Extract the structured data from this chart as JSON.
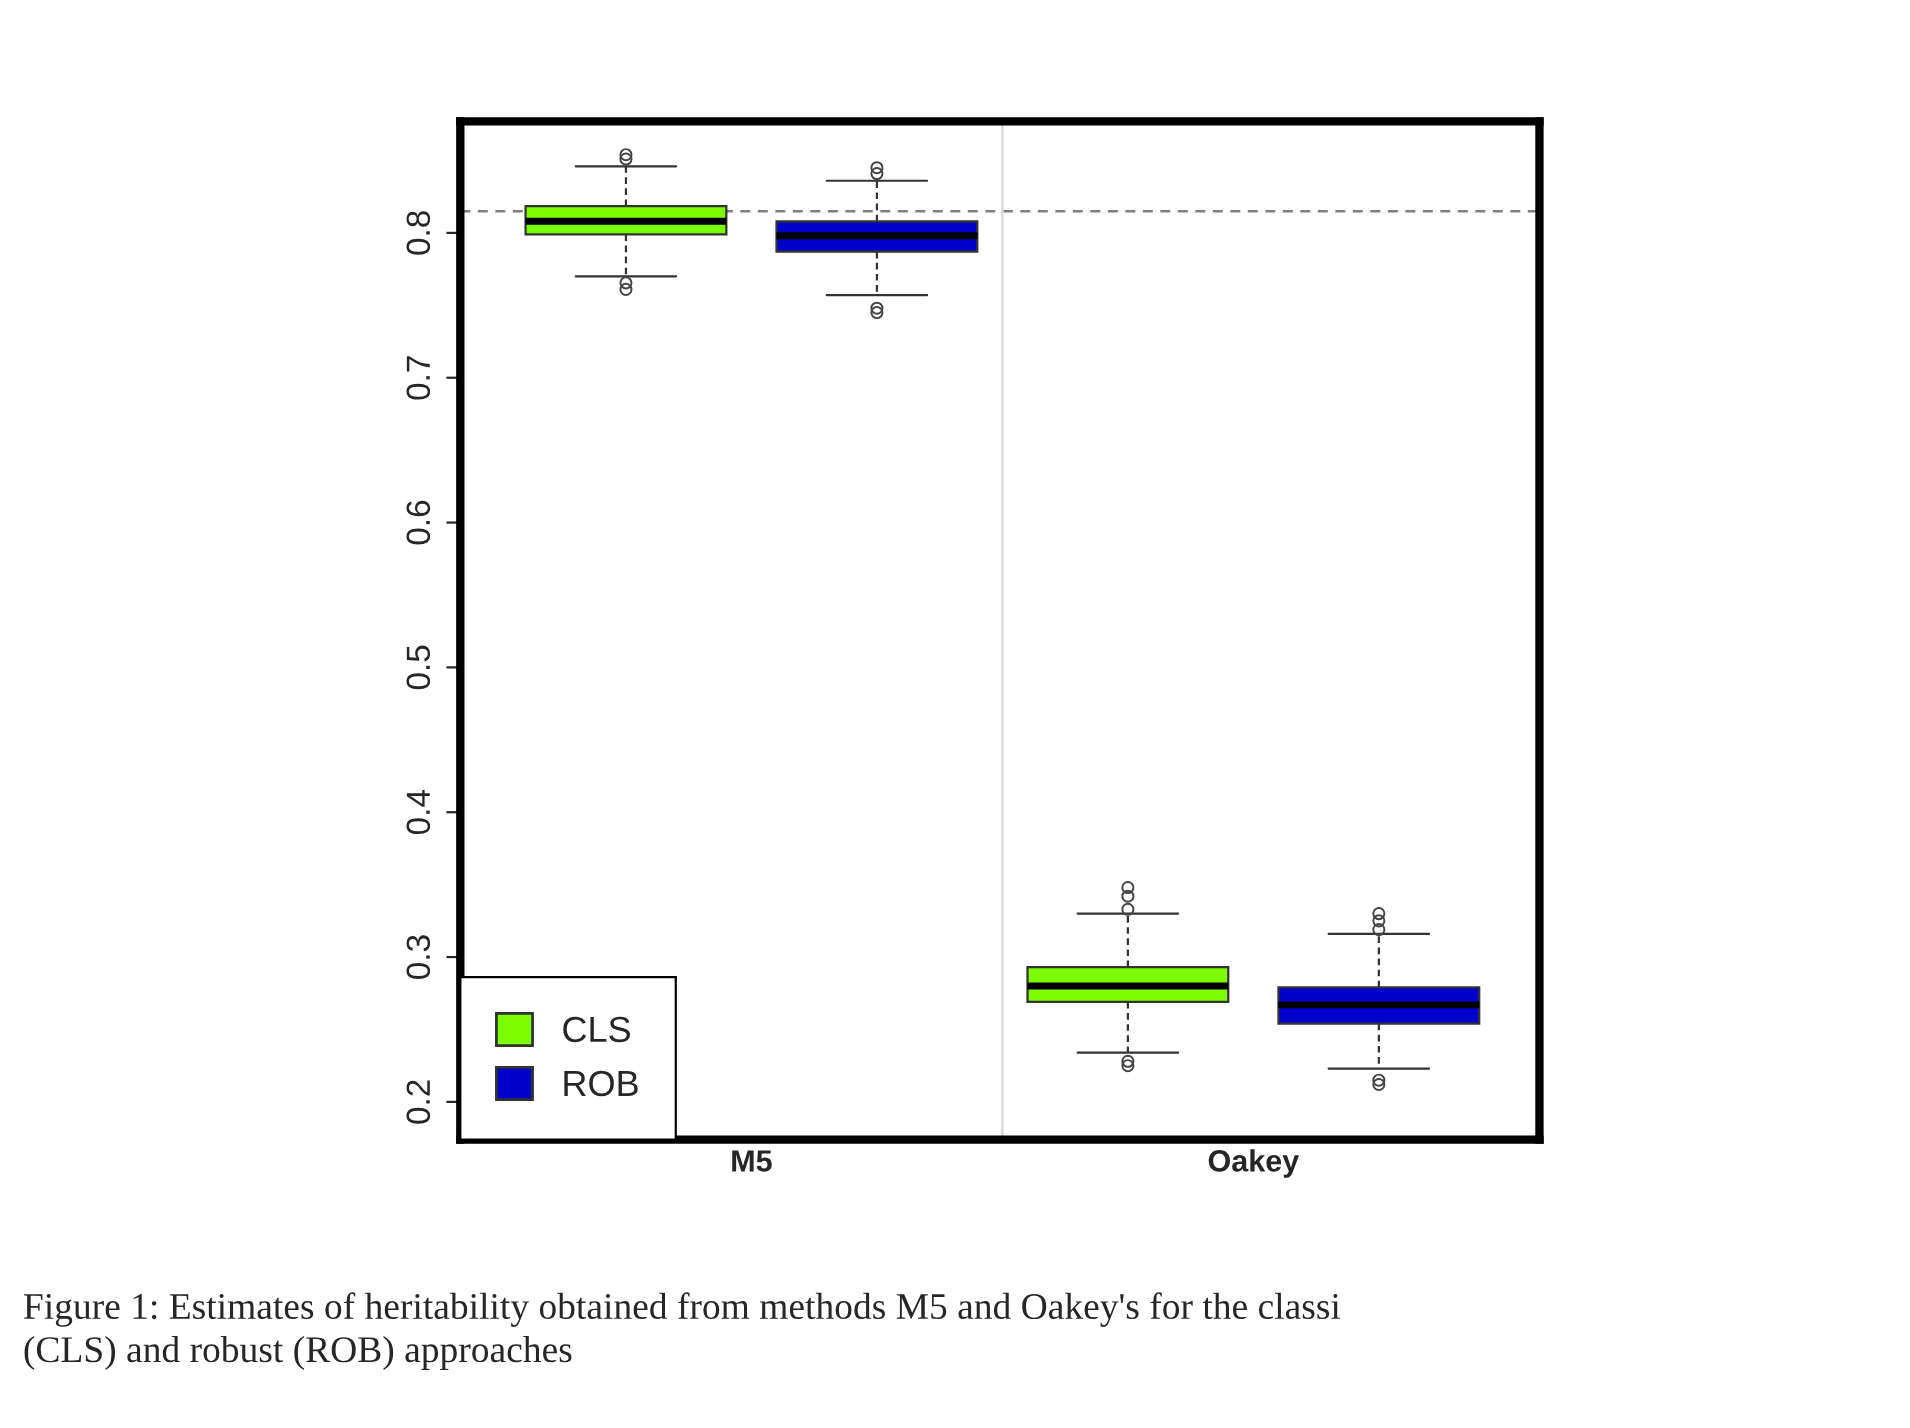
{
  "chart_data": {
    "type": "box",
    "categories": [
      "M5",
      "Oakey"
    ],
    "series": [
      {
        "name": "CLS",
        "color": "#7cfc00",
        "boxes": [
          {
            "low": 0.77,
            "q1": 0.799,
            "median": 0.808,
            "q3": 0.8185,
            "high": 0.846,
            "outliers": [
              0.854,
              0.851,
              0.7655,
              0.761
            ]
          },
          {
            "low": 0.234,
            "q1": 0.269,
            "median": 0.28,
            "q3": 0.293,
            "high": 0.33,
            "outliers": [
              0.348,
              0.342,
              0.333,
              0.228,
              0.225
            ]
          }
        ]
      },
      {
        "name": "ROB",
        "color": "#0000cd",
        "boxes": [
          {
            "low": 0.757,
            "q1": 0.787,
            "median": 0.798,
            "q3": 0.808,
            "high": 0.836,
            "outliers": [
              0.845,
              0.841,
              0.748,
              0.745
            ]
          },
          {
            "low": 0.223,
            "q1": 0.254,
            "median": 0.267,
            "q3": 0.279,
            "high": 0.316,
            "outliers": [
              0.33,
              0.325,
              0.319,
              0.215,
              0.212
            ]
          }
        ]
      }
    ],
    "ylim": [
      0.174,
      0.877
    ],
    "yticks": [
      0.2,
      0.3,
      0.4,
      0.5,
      0.6,
      0.7,
      0.8
    ],
    "ref_lines": [
      {
        "axis": "y",
        "value": 0.815,
        "color": "#808080",
        "line_style": "dashed"
      }
    ],
    "legend": "bottom left",
    "grid": false,
    "annotations": [
      "Figure 1: Estimates of heritability obtained from methods M5 and Oakey's for the classi\n(CLS) and robust (ROB) approaches"
    ]
  }
}
